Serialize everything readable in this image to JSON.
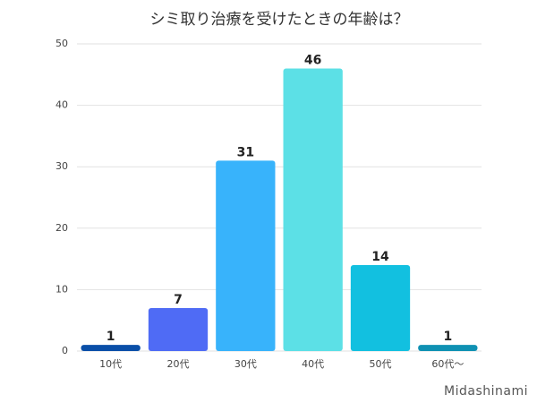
{
  "chart_data": {
    "type": "bar",
    "title": "シミ取り治療を受けたときの年齢は？",
    "categories": [
      "10代",
      "20代",
      "30代",
      "40代",
      "50代",
      "60代～"
    ],
    "values": [
      1,
      7,
      31,
      46,
      14,
      1
    ],
    "colors": [
      "#0a4fa8",
      "#4f6bf5",
      "#38b3fb",
      "#5ce0e6",
      "#12c0e0",
      "#0f91b3"
    ],
    "ylim": [
      0,
      50
    ],
    "yticks": [
      0,
      10,
      20,
      30,
      40,
      50
    ],
    "grid": true,
    "watermark": "Midashinami"
  }
}
